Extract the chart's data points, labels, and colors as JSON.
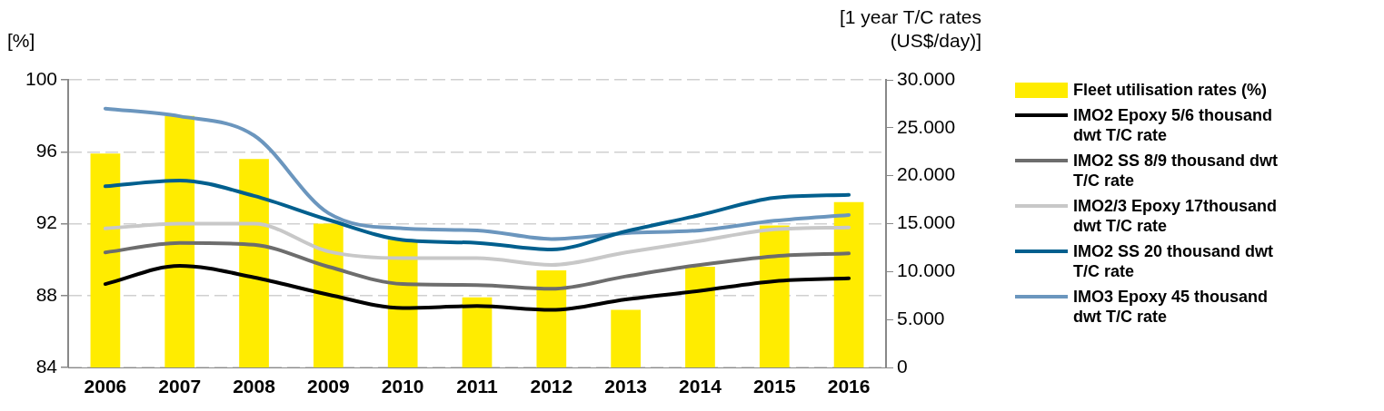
{
  "chart_data": {
    "type": "bar",
    "ylabel": "[%]",
    "y2label": "[1 year T/C rates (US$/day)]",
    "categories": [
      "2006",
      "2007",
      "2008",
      "2009",
      "2010",
      "2011",
      "2012",
      "2013",
      "2014",
      "2015",
      "2016"
    ],
    "series": [
      {
        "name": "Fleet utilisation rates (%)",
        "color": "#ffec00",
        "values": [
          95.9,
          98.0,
          95.6,
          92.0,
          91.1,
          87.9,
          89.4,
          87.2,
          89.6,
          91.9,
          93.2
        ]
      },
      {
        "name": "IMO2 Epoxy 5/6 thousand dwt T/C rate",
        "type": "line",
        "axis": "y2",
        "color": "#000000",
        "values": [
          8700,
          10600,
          9400,
          7600,
          6200,
          6400,
          6000,
          7100,
          8000,
          9000,
          9300
        ]
      },
      {
        "name": "IMO2 SS 8/9 thousand dwt T/C rate",
        "type": "line",
        "axis": "y2",
        "color": "#6d6d6d",
        "values": [
          12000,
          13000,
          12800,
          10500,
          8700,
          8600,
          8200,
          9500,
          10700,
          11600,
          11900
        ]
      },
      {
        "name": "IMO2/3 Epoxy 17thousand dwt T/C rate",
        "type": "line",
        "axis": "y2",
        "color": "#c8c8c8",
        "values": [
          14500,
          15000,
          15000,
          12100,
          11400,
          11400,
          10700,
          12000,
          13200,
          14400,
          14600
        ]
      },
      {
        "name": "IMO2 SS 20 thousand dwt T/C rate",
        "type": "line",
        "axis": "y2",
        "color": "#005f8e",
        "values": [
          18900,
          19500,
          17900,
          15400,
          13300,
          13000,
          12300,
          14200,
          15900,
          17700,
          18000
        ]
      },
      {
        "name": "IMO3 Epoxy 45 thousand dwt T/C rate",
        "type": "line",
        "axis": "y2",
        "color": "#6b96be",
        "values": [
          27000,
          26200,
          24200,
          16100,
          14500,
          14300,
          13400,
          14000,
          14300,
          15300,
          15900
        ]
      }
    ],
    "ylim": [
      84,
      100
    ],
    "yticks": [
      84,
      88,
      92,
      96,
      100
    ],
    "y2lim": [
      0,
      30000
    ],
    "y2ticks": [
      {
        "value": 0,
        "label": "0"
      },
      {
        "value": 5000,
        "label": "5.000"
      },
      {
        "value": 10000,
        "label": "10.000"
      },
      {
        "value": 15000,
        "label": "15.000"
      },
      {
        "value": 20000,
        "label": "20.000"
      },
      {
        "value": 25000,
        "label": "25.000"
      },
      {
        "value": 30000,
        "label": "30.000"
      }
    ],
    "grid": "y",
    "legend": "right",
    "marker": "none",
    "line_style": "solid"
  }
}
